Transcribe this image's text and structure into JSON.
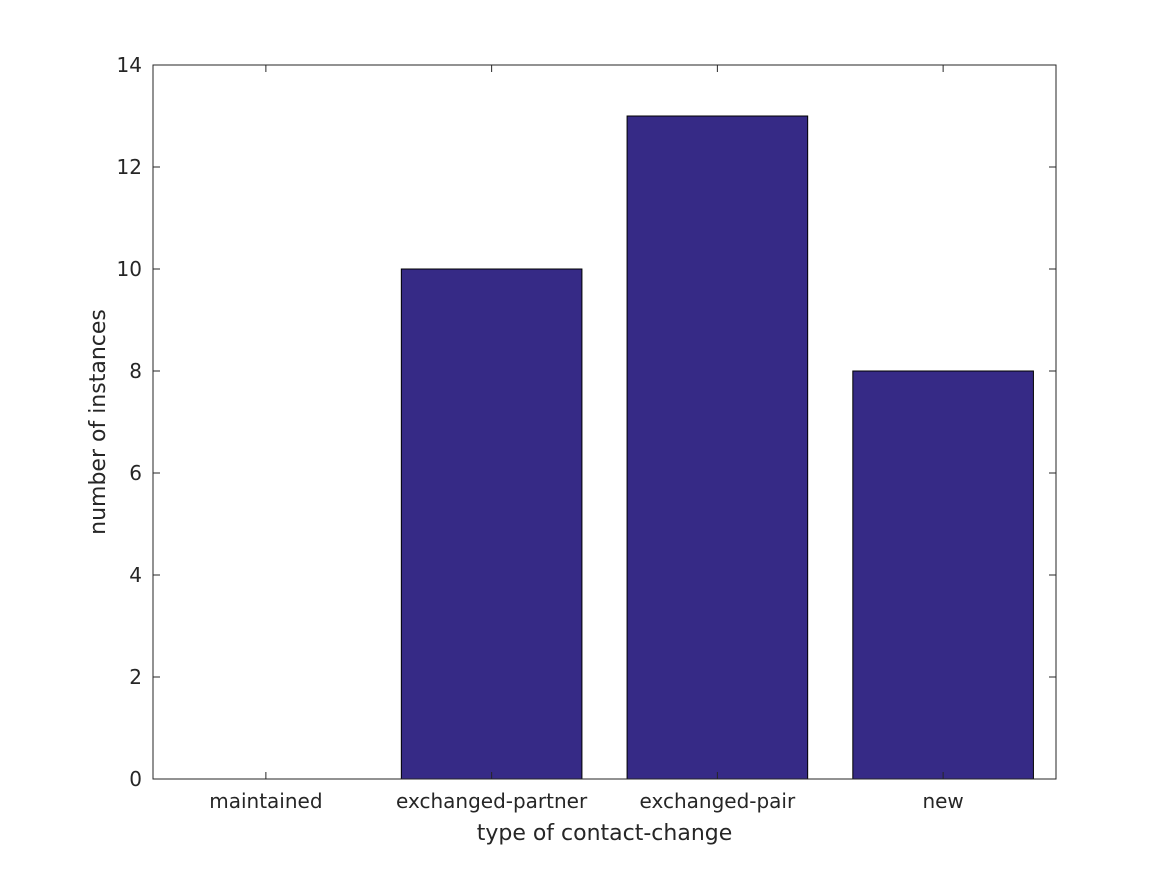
{
  "chart_data": {
    "type": "bar",
    "categories": [
      "maintained",
      "exchanged-partner",
      "exchanged-pair",
      "new"
    ],
    "values": [
      0,
      10,
      13,
      8
    ],
    "xlabel": "type of contact-change",
    "ylabel": "number of instances",
    "ylim": [
      0,
      14
    ],
    "yticks": [
      0,
      2,
      4,
      6,
      8,
      10,
      12,
      14
    ],
    "grid": false,
    "bar_color": "#362a86"
  }
}
